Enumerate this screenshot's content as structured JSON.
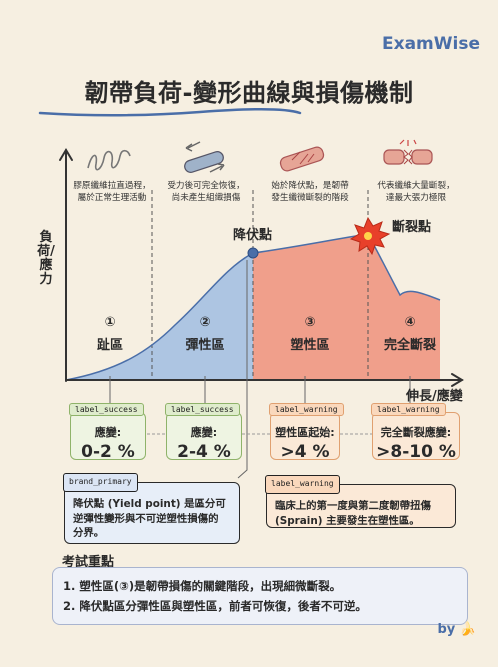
{
  "brand": "ExamWise",
  "title": "韌帶負荷-變形曲線與損傷機制",
  "annotations": [
    {
      "line1": "膠原纖維拉直過程，",
      "line2": "屬於正常生理活動",
      "icon": "spring-icon"
    },
    {
      "line1": "受力後可完全恢復，",
      "line2": "尚未產生組織損傷",
      "icon": "cylinder-icon"
    },
    {
      "line1": "始於降伏點，是韌帶",
      "line2": "發生纖微斷裂的階段",
      "icon": "frayed-fiber-icon"
    },
    {
      "line1": "代表纖維大量斷裂，",
      "line2": "達最大張力極限",
      "icon": "torn-fiber-icon"
    }
  ],
  "axes": {
    "y_label": "負荷/應力",
    "x_label": "伸長/應變"
  },
  "points": {
    "yield": "降伏點",
    "rupture": "斷裂點"
  },
  "zones": [
    {
      "num": "①",
      "name": "趾區"
    },
    {
      "num": "②",
      "name": "彈性區"
    },
    {
      "num": "③",
      "name": "塑性區"
    },
    {
      "num": "④",
      "name": "完全斷裂"
    }
  ],
  "cards": [
    {
      "tag": "label_success",
      "key": "應變:",
      "value": "0-2 %"
    },
    {
      "tag": "label_success",
      "key": "應變:",
      "value": "2-4 %"
    },
    {
      "tag": "label_warning",
      "key": "塑性區起始:",
      "value": ">4 %"
    },
    {
      "tag": "label_warning",
      "key": "完全斷裂應變:",
      "value": ">8-10 %"
    }
  ],
  "notes": {
    "yield_note": {
      "tag": "brand_primary",
      "lines": [
        "降伏點 (Yield point) 是區分可",
        "逆彈性變形與不可逆塑性損傷的",
        "分界。"
      ]
    },
    "clinical_note": {
      "tag": "label_warning",
      "lines": [
        "臨床上的第一度與第二度韌帶扭傷",
        "(Sprain) 主要發生在塑性區。"
      ]
    }
  },
  "exam": {
    "title": "考試重點",
    "items": [
      "1. 塑性區(③)是韌帶損傷的關鍵階段，出現細微斷裂。",
      "2. 降伏點區分彈性區與塑性區，前者可恢復，後者不可逆。"
    ]
  },
  "byline": "by 🍌",
  "colors": {
    "blue_fill": "#a9c2e2",
    "red_fill": "#ef9a86",
    "accent": "#4a6ea8",
    "burst": "#e8402a"
  }
}
